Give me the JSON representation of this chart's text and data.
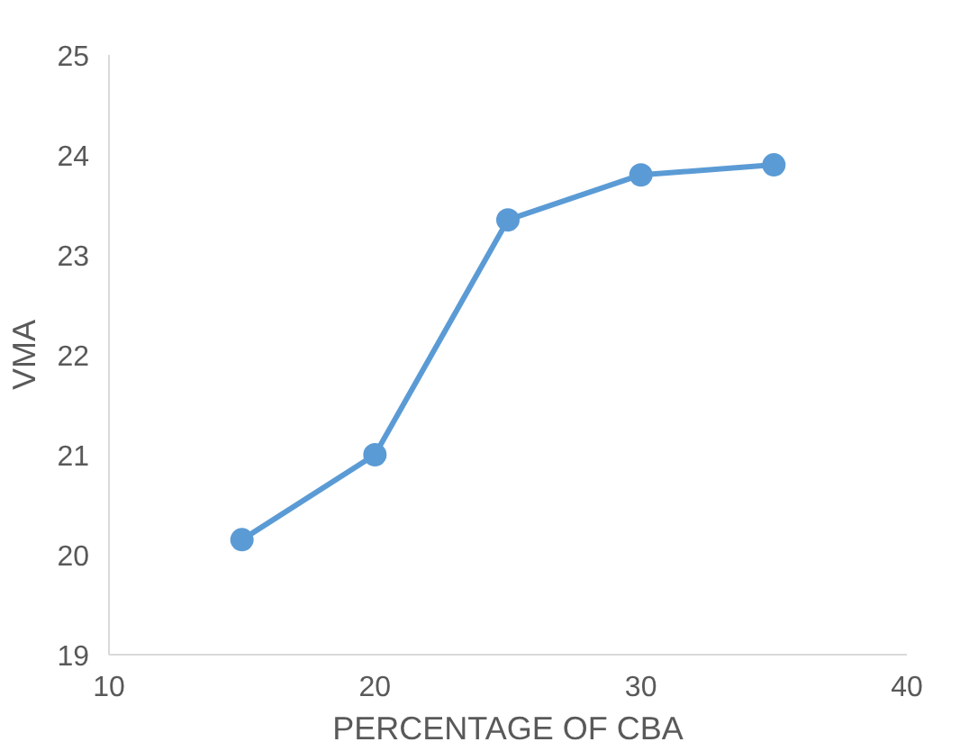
{
  "chart_data": {
    "type": "line",
    "xlabel": "PERCENTAGE OF CBA",
    "ylabel": "VMA",
    "x": [
      15,
      20,
      25,
      30,
      35
    ],
    "series": [
      {
        "color": "#5b9bd5",
        "values": [
          20.15,
          21.0,
          23.35,
          23.8,
          23.9
        ]
      }
    ],
    "xlim": [
      10,
      40
    ],
    "xticks": [
      10,
      20,
      30,
      40
    ],
    "ylim": [
      19,
      25
    ],
    "yticks": [
      19,
      20,
      21,
      22,
      23,
      24,
      25
    ],
    "grid": false,
    "marker": "circle",
    "line_style": "solid"
  }
}
